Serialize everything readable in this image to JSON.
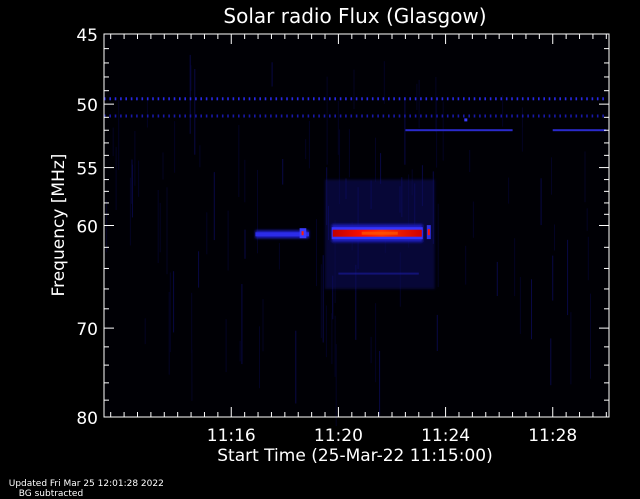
{
  "chart_data": {
    "type": "heatmap",
    "title": "Solar radio Flux (Glasgow)",
    "xlabel": "Start Time (25-Mar-22 11:15:00)",
    "ylabel": "Frequency [MHz]",
    "x_range_minutes": [
      11.25,
      30.1
    ],
    "y_range_mhz": [
      45,
      80
    ],
    "y_scale": "log",
    "x_ticks": [
      {
        "label": "11:16",
        "minute": 16
      },
      {
        "label": "11:20",
        "minute": 20
      },
      {
        "label": "11:24",
        "minute": 24
      },
      {
        "label": "11:28",
        "minute": 28
      }
    ],
    "y_ticks": [
      {
        "label": "45",
        "mhz": 45
      },
      {
        "label": "50",
        "mhz": 50
      },
      {
        "label": "55",
        "mhz": 55
      },
      {
        "label": "60",
        "mhz": 60
      },
      {
        "label": "70",
        "mhz": 70
      },
      {
        "label": "80",
        "mhz": 80
      }
    ],
    "colors": {
      "background": "#000000",
      "axis": "#ffffff",
      "low": "#0a0a6e",
      "mid": "#2a2aff",
      "high": "#ff0000",
      "peak": "#ff6a00"
    },
    "features": [
      {
        "name": "persistent-band-49.6",
        "freq_mhz": 49.6,
        "t_start": 11.25,
        "t_end": 30.0,
        "intensity": 0.4
      },
      {
        "name": "persistent-band-50.9",
        "freq_mhz": 50.9,
        "t_start": 11.25,
        "t_end": 30.0,
        "intensity": 0.25
      },
      {
        "name": "band-52.0-a",
        "freq_mhz": 52.0,
        "t_start": 22.5,
        "t_end": 26.5,
        "intensity": 0.45
      },
      {
        "name": "band-52.0-b",
        "freq_mhz": 52.0,
        "t_start": 28.0,
        "t_end": 30.0,
        "intensity": 0.45
      },
      {
        "name": "burst-main",
        "freq_mhz": 60.7,
        "t_start": 19.75,
        "t_end": 23.15,
        "intensity": 1.0
      },
      {
        "name": "burst-spike",
        "freq_mhz": 60.6,
        "t_start": 23.3,
        "t_end": 23.45,
        "intensity": 0.9
      },
      {
        "name": "burst-precursor",
        "freq_mhz": 60.8,
        "t_start": 16.9,
        "t_end": 18.9,
        "intensity": 0.35
      },
      {
        "name": "burst-precursor-spike",
        "freq_mhz": 60.7,
        "t_start": 18.55,
        "t_end": 18.8,
        "intensity": 0.55
      }
    ]
  },
  "footer": {
    "updated": "Updated Fri Mar 25 12:01:28 2022",
    "note": "BG subtracted"
  }
}
